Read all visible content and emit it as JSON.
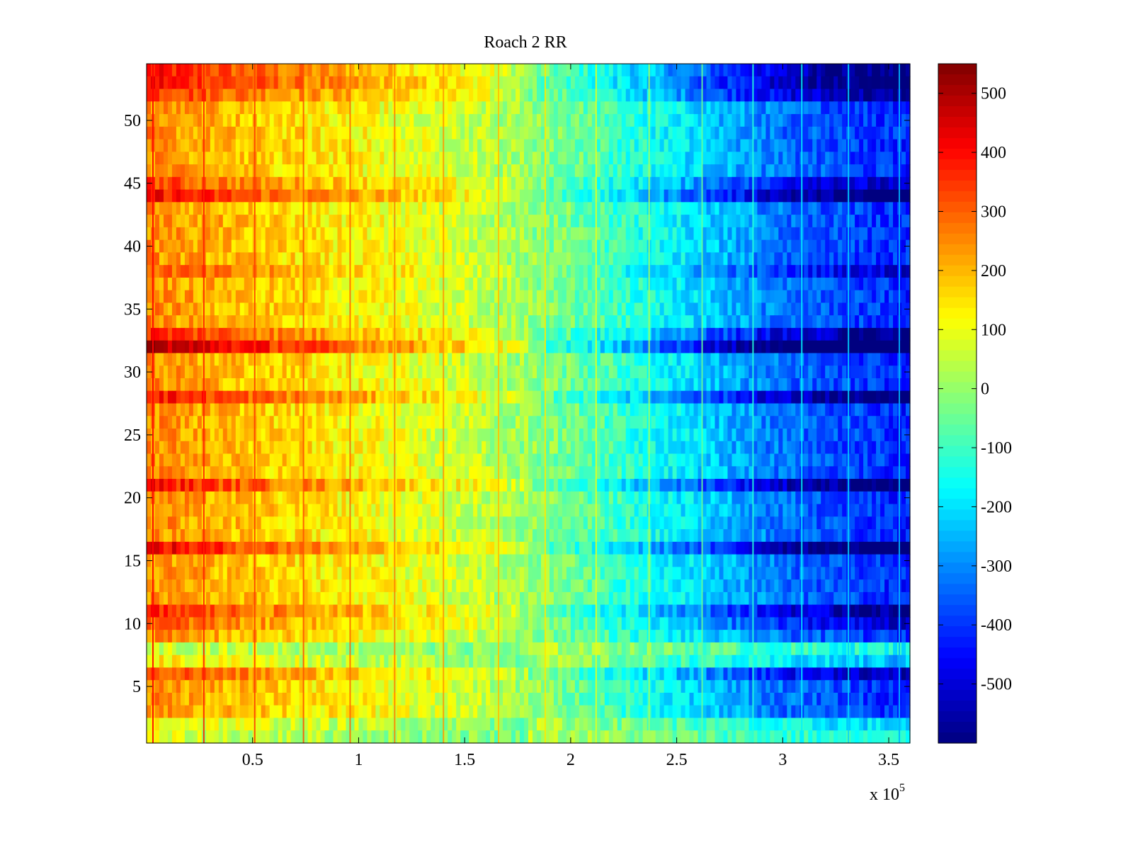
{
  "chart_data": {
    "type": "heatmap",
    "title": "Roach 2 RR",
    "xlabel": "",
    "ylabel": "",
    "x_multiplier_label": "x 10",
    "x_multiplier_exponent": "5",
    "xlim": [
      0,
      3.6
    ],
    "ylim": [
      0.5,
      54.5
    ],
    "x_ticks": [
      0.5,
      1,
      1.5,
      2,
      2.5,
      3,
      3.5
    ],
    "x_tick_labels": [
      "0.5",
      "1",
      "1.5",
      "2",
      "2.5",
      "3",
      "3.5"
    ],
    "y_ticks": [
      5,
      10,
      15,
      20,
      25,
      30,
      35,
      40,
      45,
      50
    ],
    "y_tick_labels": [
      "5",
      "10",
      "15",
      "20",
      "25",
      "30",
      "35",
      "40",
      "45",
      "50"
    ],
    "rows": 54,
    "colorbar": {
      "colormap": "jet",
      "clim": [
        -600,
        550
      ],
      "ticks": [
        500,
        400,
        300,
        200,
        100,
        0,
        -100,
        -200,
        -300,
        -400,
        -500
      ],
      "tick_labels": [
        "500",
        "400",
        "300",
        "200",
        "100",
        "0",
        "-100",
        "-200",
        "-300",
        "-400",
        "-500"
      ]
    },
    "column_trend": {
      "description_of_values": "approximate mean value along x (in units of 10^5)",
      "x": [
        0,
        0.5,
        1,
        1.5,
        2,
        2.5,
        3,
        3.6
      ],
      "values": [
        250,
        180,
        120,
        60,
        -40,
        -180,
        -330,
        -420
      ]
    },
    "row_offsets": {
      "32": 240,
      "33": 120,
      "28": 140,
      "21": 140,
      "44": 150,
      "45": 80,
      "16": 160,
      "11": 110,
      "10": 60,
      "8": -160,
      "7": -100,
      "6": 80,
      "2": -120,
      "1": -160,
      "52": 110,
      "53": 150,
      "54": 130,
      "38": 60
    },
    "vertical_lines_x": [
      0.03,
      0.27,
      0.51,
      0.74,
      0.96,
      1.17,
      1.4,
      1.66,
      1.88,
      2.12,
      2.37,
      2.62,
      2.86,
      3.09,
      3.31,
      3.55
    ]
  }
}
